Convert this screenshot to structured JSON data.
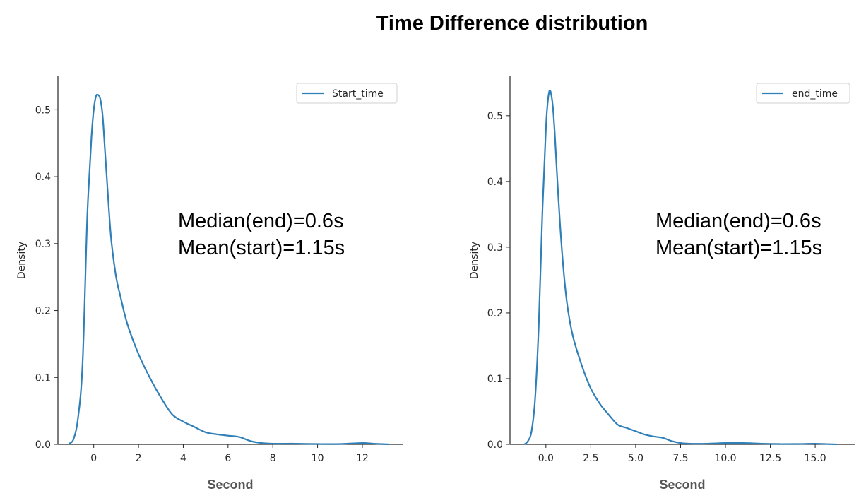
{
  "title": "Time Difference distribution",
  "chart_data": [
    {
      "type": "line",
      "kind": "kde",
      "xlabel": "Second",
      "ylabel": "Density",
      "xlim": [
        -1.6,
        13.8
      ],
      "ylim": [
        0,
        0.55
      ],
      "xticks": [
        0,
        2,
        4,
        6,
        8,
        10,
        12
      ],
      "xtick_labels": [
        "0",
        "2",
        "4",
        "6",
        "8",
        "10",
        "12"
      ],
      "yticks": [
        0.0,
        0.1,
        0.2,
        0.3,
        0.4,
        0.5
      ],
      "ytick_labels": [
        "0.0",
        "0.1",
        "0.2",
        "0.3",
        "0.4",
        "0.5"
      ],
      "legend": [
        "Start_time"
      ],
      "legend_position": "upper right",
      "color": "#2f7fb8",
      "annotations": [
        "Median(end)=0.6s",
        "Mean(start)=1.15s"
      ],
      "series": [
        {
          "name": "Start_time",
          "x": [
            -1.1,
            -0.9,
            -0.7,
            -0.5,
            -0.3,
            -0.2,
            -0.1,
            0.0,
            0.1,
            0.2,
            0.3,
            0.4,
            0.5,
            0.6,
            0.7,
            0.8,
            1.0,
            1.2,
            1.5,
            2.0,
            2.5,
            3.0,
            3.5,
            4.0,
            4.5,
            5.0,
            5.5,
            6.0,
            6.5,
            7.0,
            7.5,
            8.0,
            9.0,
            10.0,
            11.0,
            12.0,
            12.5,
            13.2
          ],
          "y": [
            0.001,
            0.008,
            0.04,
            0.12,
            0.33,
            0.4,
            0.46,
            0.5,
            0.52,
            0.522,
            0.515,
            0.49,
            0.44,
            0.39,
            0.34,
            0.3,
            0.25,
            0.22,
            0.18,
            0.135,
            0.1,
            0.07,
            0.045,
            0.034,
            0.026,
            0.018,
            0.015,
            0.013,
            0.011,
            0.005,
            0.002,
            0.001,
            0.001,
            0.0005,
            0.0005,
            0.002,
            0.001,
            0.0
          ]
        }
      ]
    },
    {
      "type": "line",
      "kind": "kde",
      "xlabel": "Second",
      "ylabel": "Density",
      "xlim": [
        -2.0,
        17.2
      ],
      "ylim": [
        0,
        0.56
      ],
      "xticks": [
        0.0,
        2.5,
        5.0,
        7.5,
        10.0,
        12.5,
        15.0
      ],
      "xtick_labels": [
        "0.0",
        "2.5",
        "5.0",
        "7.5",
        "10.0",
        "12.5",
        "15.0"
      ],
      "yticks": [
        0.0,
        0.1,
        0.2,
        0.3,
        0.4,
        0.5
      ],
      "ytick_labels": [
        "0.0",
        "0.1",
        "0.2",
        "0.3",
        "0.4",
        "0.5"
      ],
      "legend": [
        "end_time"
      ],
      "legend_position": "upper right",
      "color": "#2f7fb8",
      "annotations": [
        "Median(end)=0.6s",
        "Mean(start)=1.15s"
      ],
      "series": [
        {
          "name": "end_time",
          "x": [
            -1.2,
            -1.0,
            -0.8,
            -0.6,
            -0.4,
            -0.2,
            0.0,
            0.1,
            0.2,
            0.3,
            0.4,
            0.5,
            0.6,
            0.8,
            1.0,
            1.2,
            1.5,
            2.0,
            2.5,
            3.0,
            3.5,
            4.0,
            4.5,
            5.0,
            5.5,
            6.0,
            6.5,
            7.0,
            7.5,
            8.0,
            9.0,
            10.0,
            11.0,
            12.0,
            13.0,
            14.0,
            15.0,
            16.2
          ],
          "y": [
            0.0,
            0.005,
            0.02,
            0.07,
            0.18,
            0.35,
            0.48,
            0.52,
            0.538,
            0.532,
            0.51,
            0.47,
            0.42,
            0.33,
            0.26,
            0.21,
            0.165,
            0.12,
            0.085,
            0.062,
            0.045,
            0.03,
            0.025,
            0.02,
            0.015,
            0.012,
            0.01,
            0.005,
            0.002,
            0.001,
            0.001,
            0.002,
            0.002,
            0.001,
            0.0005,
            0.0005,
            0.001,
            0.0
          ]
        }
      ]
    }
  ]
}
